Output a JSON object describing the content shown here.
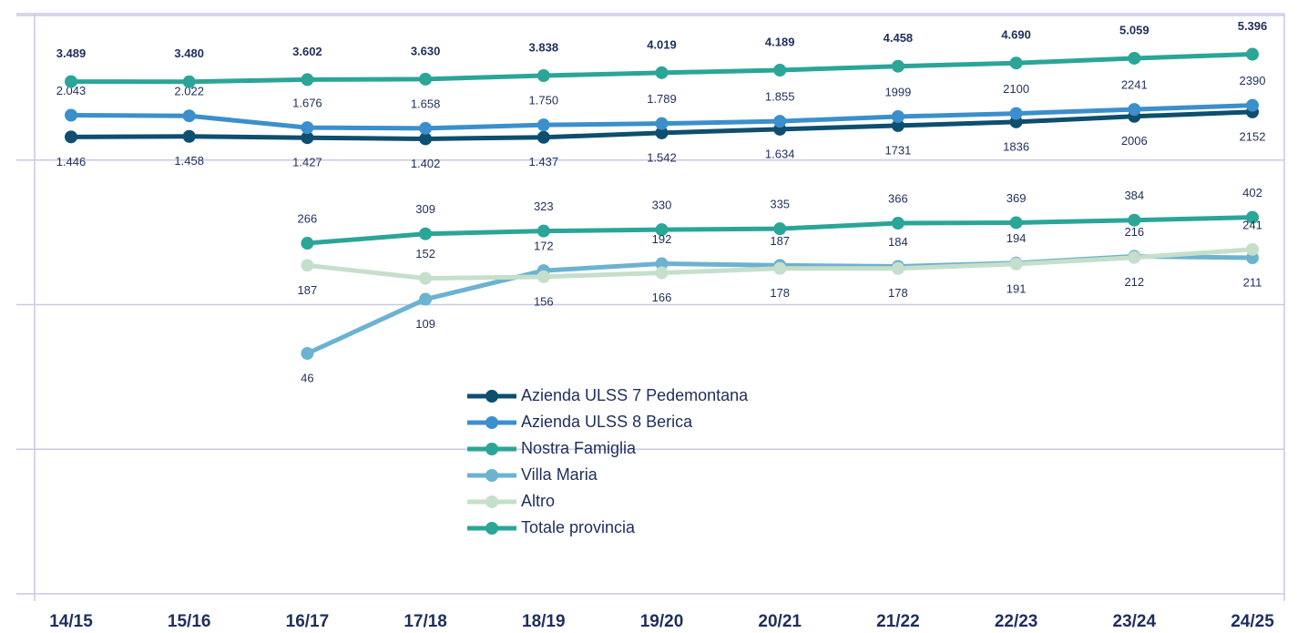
{
  "chart_data": {
    "type": "line",
    "categories": [
      "14/15",
      "15/16",
      "16/17",
      "17/18",
      "18/19",
      "19/20",
      "20/21",
      "21/22",
      "22/23",
      "23/24",
      "24/25"
    ],
    "ylim": [
      1,
      10000
    ],
    "yticks": [
      1,
      10,
      100,
      1000,
      10000
    ],
    "log_scale": true,
    "grid": true,
    "series": [
      {
        "name": "Azienda ULSS 7 Pedemontana",
        "color": "#0e4e6e",
        "values": [
          1446,
          1458,
          1427,
          1402,
          1437,
          1542,
          1634,
          1731,
          1836,
          2006,
          2152
        ],
        "value_labels": [
          "1.446",
          "1.458",
          "1.427",
          "1.402",
          "1.437",
          "1.542",
          "1.634",
          "1731",
          "1836",
          "2006",
          "2152"
        ]
      },
      {
        "name": "Azienda ULSS 8 Berica",
        "color": "#3b8fcc",
        "values": [
          2043,
          2022,
          1676,
          1658,
          1750,
          1789,
          1855,
          1999,
          2100,
          2241,
          2390
        ],
        "value_labels": [
          "2.043",
          "2.022",
          "1.676",
          "1.658",
          "1.750",
          "1.789",
          "1.855",
          "1999",
          "2100",
          "2241",
          "2390"
        ]
      },
      {
        "name": "Nostra Famiglia",
        "color": "#2ba597",
        "values": [
          null,
          null,
          266,
          309,
          323,
          330,
          335,
          366,
          369,
          384,
          402
        ]
      },
      {
        "name": "Villa Maria",
        "color": "#6cb2d1",
        "values": [
          null,
          null,
          46,
          109,
          172,
          192,
          187,
          184,
          194,
          216,
          211
        ]
      },
      {
        "name": "Altro",
        "color": "#c5dfcb",
        "values": [
          null,
          null,
          187,
          152,
          156,
          166,
          178,
          178,
          191,
          212,
          241
        ]
      },
      {
        "name": "Totale provincia",
        "color": "#2ba597",
        "values": [
          3489,
          3480,
          3602,
          3630,
          3838,
          4019,
          4189,
          4458,
          4690,
          5059,
          5396
        ],
        "value_labels": [
          "3.489",
          "3.480",
          "3.602",
          "3.630",
          "3.838",
          "4.019",
          "4.189",
          "4.458",
          "4.690",
          "5.059",
          "5.396"
        ]
      }
    ],
    "legend": "center"
  }
}
